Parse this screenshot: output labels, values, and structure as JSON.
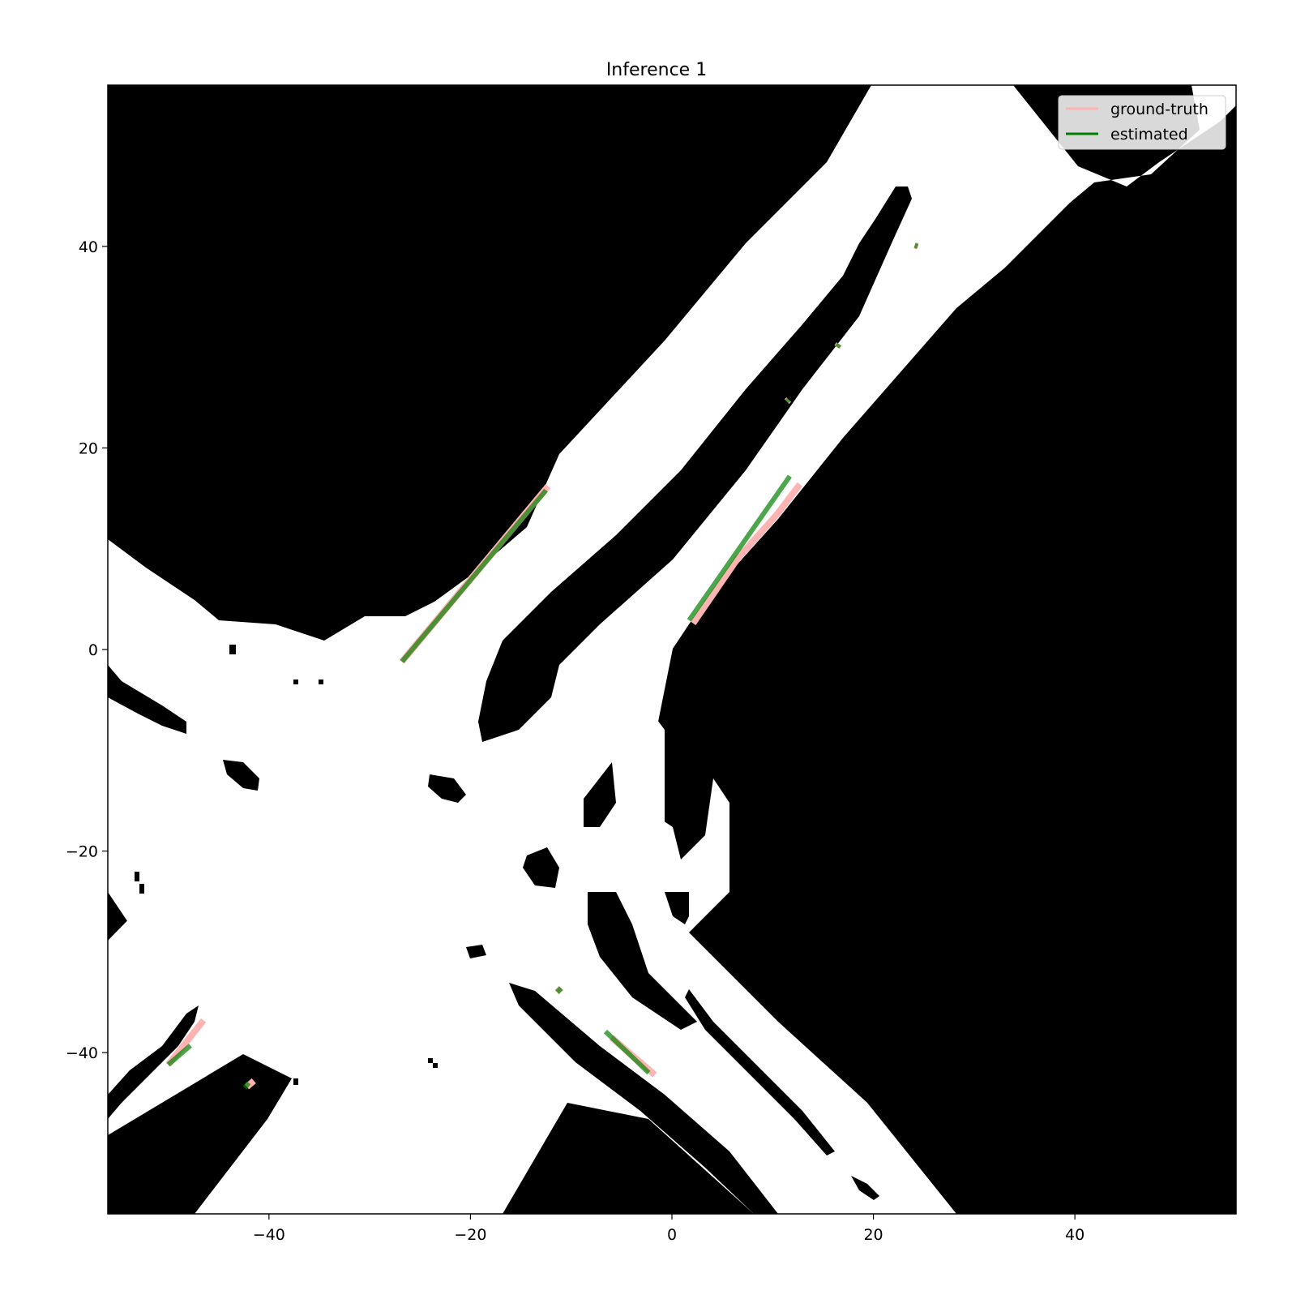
{
  "chart_data": {
    "type": "line",
    "title": "Inference 1",
    "xlabel": "",
    "ylabel": "",
    "xlim": [
      -56,
      56
    ],
    "ylim": [
      -56,
      56
    ],
    "xticks": [
      -40,
      -20,
      0,
      20,
      40
    ],
    "yticks": [
      -40,
      -20,
      0,
      20,
      40
    ],
    "xtick_labels": [
      "−40",
      "−20",
      "0",
      "20",
      "40"
    ],
    "ytick_labels": [
      "−40",
      "−20",
      "0",
      "20",
      "40"
    ],
    "grid": false,
    "legend_position": "top-right",
    "background_map": "binary occupancy map: white drivable area on black",
    "colors": {
      "ground_truth": "#ffb3b3",
      "estimated": "#008000",
      "overlap": "#4d5e00",
      "map_free": "#ffffff",
      "map_occupied": "#000000"
    },
    "series": [
      {
        "name": "ground-truth",
        "segments": [
          [
            [
              -12.3,
              16.2
            ],
            [
              -26.8,
              -1.2
            ]
          ],
          [
            [
              12.7,
              16.4
            ],
            [
              10.5,
              13.5
            ],
            [
              6.5,
              9.0
            ],
            [
              2.1,
              2.6
            ]
          ],
          [
            [
              -46.5,
              -36.8
            ],
            [
              -50.0,
              -41.2
            ]
          ],
          [
            [
              -1.7,
              -42.2
            ],
            [
              -6.0,
              -38.5
            ]
          ],
          [
            [
              -41.5,
              -42.8
            ],
            [
              -42.2,
              -43.4
            ]
          ],
          [
            [
              -11.0,
              -33.6
            ],
            [
              -11.4,
              -34.0
            ]
          ],
          [
            [
              16.4,
              30.0
            ],
            [
              16.6,
              30.3
            ]
          ],
          [
            [
              11.4,
              24.6
            ],
            [
              11.6,
              24.8
            ]
          ],
          [
            [
              24.1,
              40.1
            ],
            [
              24.4,
              40.0
            ]
          ]
        ]
      },
      {
        "name": "estimated",
        "segments": [
          [
            [
              -12.5,
              15.8
            ],
            [
              -26.8,
              -1.2
            ]
          ],
          [
            [
              11.7,
              17.2
            ],
            [
              1.7,
              2.9
            ]
          ],
          [
            [
              -47.8,
              -39.3
            ],
            [
              -50.0,
              -41.2
            ]
          ],
          [
            [
              -2.3,
              -42.0
            ],
            [
              -6.6,
              -37.9
            ]
          ],
          [
            [
              -42.0,
              -43.0
            ],
            [
              -42.4,
              -43.5
            ]
          ],
          [
            [
              -11.0,
              -33.6
            ],
            [
              -11.4,
              -34.0
            ]
          ],
          [
            [
              16.4,
              30.0
            ],
            [
              16.6,
              30.3
            ]
          ],
          [
            [
              11.4,
              24.6
            ],
            [
              11.6,
              24.8
            ]
          ],
          [
            [
              24.1,
              40.1
            ],
            [
              24.4,
              40.0
            ]
          ]
        ]
      }
    ]
  }
}
